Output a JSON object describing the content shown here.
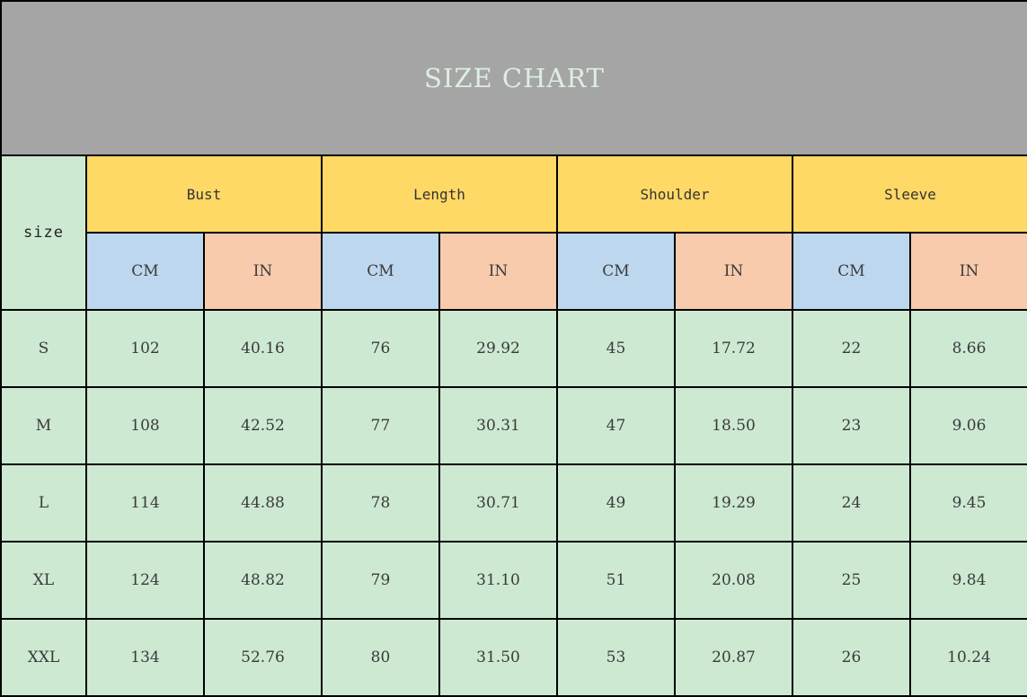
{
  "title": "SIZE CHART",
  "size_label": "size",
  "groups": [
    "Bust",
    "Length",
    "Shoulder",
    "Sleeve"
  ],
  "unit_cm": "CM",
  "unit_in": "IN",
  "colors": {
    "title_bg": "#a5a5a5",
    "group_header_bg": "#ffd966",
    "cm_header_bg": "#bdd7ee",
    "in_header_bg": "#f8cbad",
    "data_bg": "#cde9d2"
  },
  "rows": [
    {
      "size": "S",
      "values": [
        "102",
        "40.16",
        "76",
        "29.92",
        "45",
        "17.72",
        "22",
        "8.66"
      ]
    },
    {
      "size": "M",
      "values": [
        "108",
        "42.52",
        "77",
        "30.31",
        "47",
        "18.50",
        "23",
        "9.06"
      ]
    },
    {
      "size": "L",
      "values": [
        "114",
        "44.88",
        "78",
        "30.71",
        "49",
        "19.29",
        "24",
        "9.45"
      ]
    },
    {
      "size": "XL",
      "values": [
        "124",
        "48.82",
        "79",
        "31.10",
        "51",
        "20.08",
        "25",
        "9.84"
      ]
    },
    {
      "size": "XXL",
      "values": [
        "134",
        "52.76",
        "80",
        "31.50",
        "53",
        "20.87",
        "26",
        "10.24"
      ]
    }
  ]
}
